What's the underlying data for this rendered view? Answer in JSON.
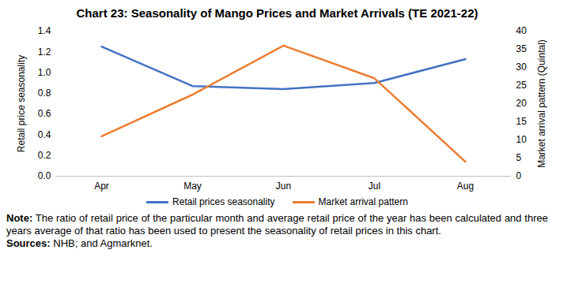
{
  "chart_data": {
    "type": "line",
    "title": "Chart 23: Seasonality of Mango Prices and Market Arrivals (TE 2021-22)",
    "categories": [
      "Apr",
      "May",
      "Jun",
      "Jul",
      "Aug"
    ],
    "series": [
      {
        "name": "Retail prices seasonality",
        "color": "#4472C4",
        "values": [
          1.25,
          0.87,
          0.84,
          0.9,
          1.13
        ]
      },
      {
        "name": "Market arrival pattern",
        "color": "#ED7D31",
        "axis": "y2",
        "values": [
          11,
          22.5,
          36,
          27,
          4
        ]
      }
    ],
    "y_label": "Retail price seasonality",
    "y2_label": "Market arrival pattern (Quintal)",
    "ylim": [
      0,
      1.4
    ],
    "yticks": [
      {
        "value": 0,
        "label": "0.0"
      },
      {
        "value": 0.2,
        "label": "0.2"
      },
      {
        "value": 0.4,
        "label": "0.4"
      },
      {
        "value": 0.6,
        "label": "0.6"
      },
      {
        "value": 0.8,
        "label": "0.8"
      },
      {
        "value": 1,
        "label": "1.0"
      },
      {
        "value": 1.2,
        "label": "1.2"
      },
      {
        "value": 1.4,
        "label": "1.4"
      }
    ],
    "y2lim": [
      0,
      40
    ],
    "y2ticks": [
      0,
      5,
      10,
      15,
      20,
      25,
      30,
      35,
      40
    ],
    "grid": false,
    "legend": "bottom",
    "note_label": "Note:",
    "note": "The ratio of retail price of the particular month and average retail price of the year has been calculated and three years average of that ratio has been used to present the seasonality of retail prices in this chart.",
    "sources_label": "Sources:",
    "sources": "NHB; and Agmarknet."
  }
}
